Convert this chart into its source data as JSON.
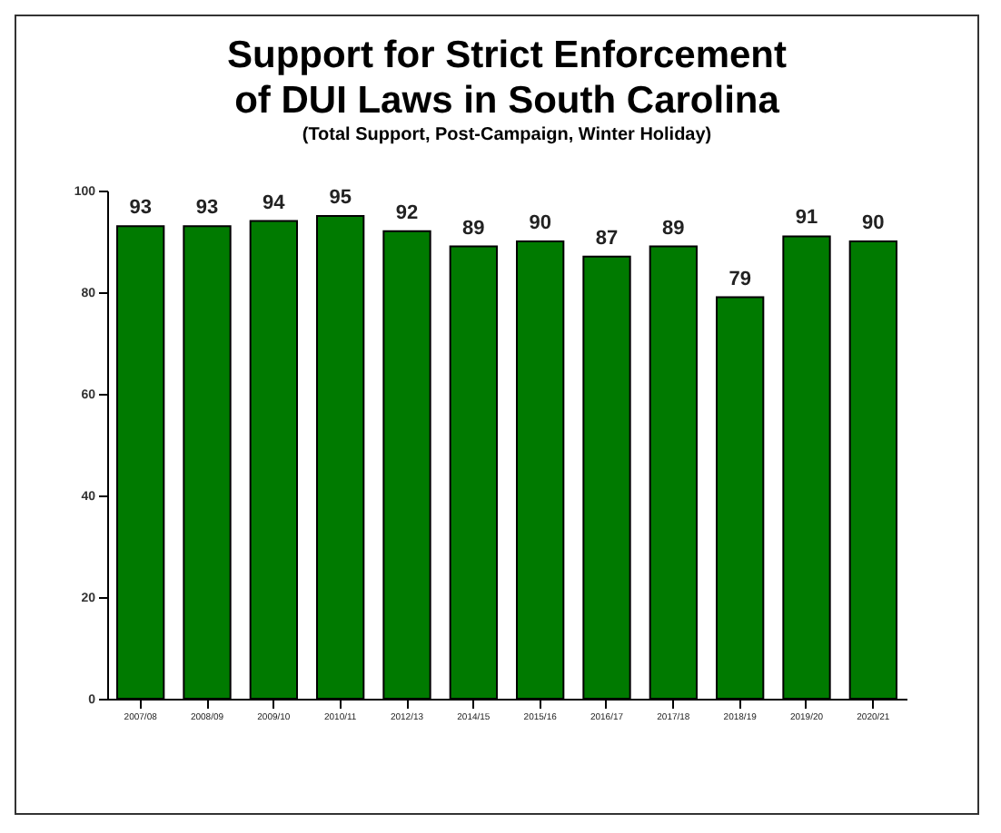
{
  "chart_data": {
    "type": "bar",
    "title": [
      "Support for Strict Enforcement",
      "of DUI Laws in South Carolina"
    ],
    "subtitle": "(Total Support, Post-Campaign, Winter Holiday)",
    "categories": [
      "2007/08",
      "2008/09",
      "2009/10",
      "2010/11",
      "2012/13",
      "2014/15",
      "2015/16",
      "2016/17",
      "2017/18",
      "2018/19",
      "2019/20",
      "2020/21"
    ],
    "values": [
      93,
      93,
      94,
      95,
      92,
      89,
      90,
      87,
      89,
      79,
      91,
      90
    ],
    "color": "#007a00",
    "ylim": [
      0,
      100
    ],
    "yticks": [
      0,
      20,
      40,
      60,
      80,
      100
    ],
    "grid": false,
    "data_labels": true
  }
}
